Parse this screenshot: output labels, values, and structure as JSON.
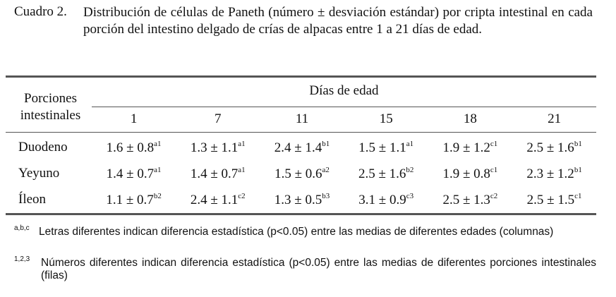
{
  "caption": {
    "label": "Cuadro 2.",
    "text": "Distribución de células de Paneth (número ± desviación estándar) por cripta intestinal en cada porción del intestino delgado de crías de alpacas entre 1 a 21 días de edad."
  },
  "table": {
    "row_header": "Porciones intestinales",
    "group_header": "Días de edad",
    "columns": [
      "1",
      "7",
      "11",
      "15",
      "18",
      "21"
    ],
    "rows": [
      {
        "name": "Duodeno",
        "cells": [
          {
            "value": "1.6 ± 0.8",
            "sup": "a1"
          },
          {
            "value": "1.3 ± 1.1",
            "sup": "a1"
          },
          {
            "value": "2.4 ± 1.4",
            "sup": "b1"
          },
          {
            "value": "1.5 ± 1.1",
            "sup": "a1"
          },
          {
            "value": "1.9 ± 1.2",
            "sup": "c1"
          },
          {
            "value": "2.5 ± 1.6",
            "sup": "b1"
          }
        ]
      },
      {
        "name": "Yeyuno",
        "cells": [
          {
            "value": "1.4 ± 0.7",
            "sup": "a1"
          },
          {
            "value": "1.4 ± 0.7",
            "sup": "a1"
          },
          {
            "value": "1.5 ± 0.6",
            "sup": "a2"
          },
          {
            "value": "2.5 ± 1.6",
            "sup": "b2"
          },
          {
            "value": "1.9 ± 0.8",
            "sup": "c1"
          },
          {
            "value": "2.3 ± 1.2",
            "sup": "b1"
          }
        ]
      },
      {
        "name": "Íleon",
        "cells": [
          {
            "value": "1.1 ± 0.7",
            "sup": "b2"
          },
          {
            "value": "2.4 ± 1.1",
            "sup": "c2"
          },
          {
            "value": "1.3 ± 0.5",
            "sup": "b3"
          },
          {
            "value": "3.1 ± 0.9",
            "sup": "c3"
          },
          {
            "value": "2.5 ± 1.3",
            "sup": "c2"
          },
          {
            "value": "2.5 ± 1.5",
            "sup": "c1"
          }
        ]
      }
    ]
  },
  "footnotes": [
    {
      "mark": "a,b,c",
      "text": "Letras diferentes indican diferencia estadística (p<0.05) entre las medias de diferentes edades (columnas)"
    },
    {
      "mark": "1,2,3",
      "text": "Números diferentes indican diferencia estadística (p<0.05) entre las medias de diferentes porciones intestinales (filas)"
    }
  ]
}
